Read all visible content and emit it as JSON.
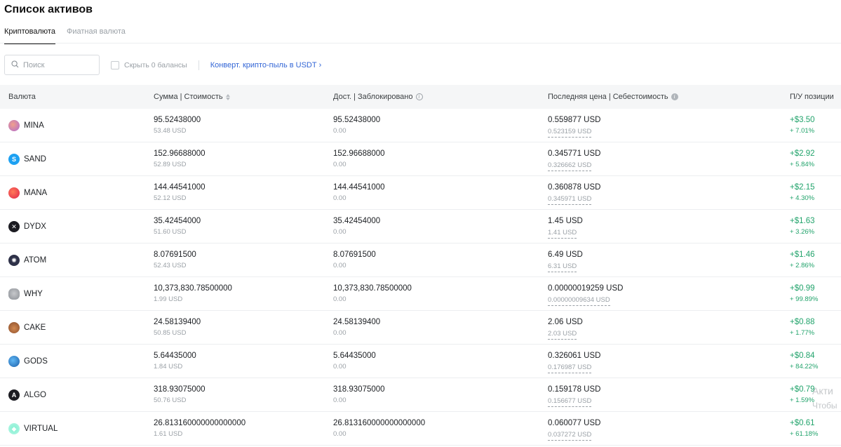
{
  "page": {
    "title": "Список активов"
  },
  "tabs": [
    {
      "label": "Криптовалюта",
      "active": true
    },
    {
      "label": "Фиатная валюта",
      "active": false
    }
  ],
  "toolbar": {
    "search_placeholder": "Поиск",
    "search_value": "",
    "hide_zero_label": "Скрыть 0 балансы",
    "hide_zero_checked": false,
    "convert_link": "Конверт. крипто-пыль в USDT",
    "convert_chevron": "›"
  },
  "table": {
    "headers": {
      "currency": "Валюта",
      "amount": "Сумма | Стоимость",
      "available": "Дост. | Заблокировано",
      "price": "Последняя цена | Себестоимость",
      "pnl": "П/У позиции"
    },
    "rows": [
      {
        "symbol": "MINA",
        "icon": "mina-icon",
        "amount": "95.52438000",
        "value": "53.48 USD",
        "available": "95.52438000",
        "locked": "0.00",
        "last_price": "0.559877 USD",
        "cost": "0.523159 USD",
        "pnl": "+$3.50",
        "pnl_pct": "+ 7.01%"
      },
      {
        "symbol": "SAND",
        "icon": "sand-icon",
        "amount": "152.96688000",
        "value": "52.89 USD",
        "available": "152.96688000",
        "locked": "0.00",
        "last_price": "0.345771 USD",
        "cost": "0.326662 USD",
        "pnl": "+$2.92",
        "pnl_pct": "+ 5.84%"
      },
      {
        "symbol": "MANA",
        "icon": "mana-icon",
        "amount": "144.44541000",
        "value": "52.12 USD",
        "available": "144.44541000",
        "locked": "0.00",
        "last_price": "0.360878 USD",
        "cost": "0.345971 USD",
        "pnl": "+$2.15",
        "pnl_pct": "+ 4.30%"
      },
      {
        "symbol": "DYDX",
        "icon": "dydx-icon",
        "amount": "35.42454000",
        "value": "51.60 USD",
        "available": "35.42454000",
        "locked": "0.00",
        "last_price": "1.45 USD",
        "cost": "1.41 USD",
        "pnl": "+$1.63",
        "pnl_pct": "+ 3.26%"
      },
      {
        "symbol": "ATOM",
        "icon": "atom-icon",
        "amount": "8.07691500",
        "value": "52.43 USD",
        "available": "8.07691500",
        "locked": "0.00",
        "last_price": "6.49 USD",
        "cost": "6.31 USD",
        "pnl": "+$1.46",
        "pnl_pct": "+ 2.86%"
      },
      {
        "symbol": "WHY",
        "icon": "why-icon",
        "amount": "10,373,830.78500000",
        "value": "1.99 USD",
        "available": "10,373,830.78500000",
        "locked": "0.00",
        "last_price": "0.00000019259 USD",
        "cost": "0.00000009634 USD",
        "pnl": "+$0.99",
        "pnl_pct": "+ 99.89%"
      },
      {
        "symbol": "CAKE",
        "icon": "cake-icon",
        "amount": "24.58139400",
        "value": "50.85 USD",
        "available": "24.58139400",
        "locked": "0.00",
        "last_price": "2.06 USD",
        "cost": "2.03 USD",
        "pnl": "+$0.88",
        "pnl_pct": "+ 1.77%"
      },
      {
        "symbol": "GODS",
        "icon": "gods-icon",
        "amount": "5.64435000",
        "value": "1.84 USD",
        "available": "5.64435000",
        "locked": "0.00",
        "last_price": "0.326061 USD",
        "cost": "0.176987 USD",
        "pnl": "+$0.84",
        "pnl_pct": "+ 84.22%"
      },
      {
        "symbol": "ALGO",
        "icon": "algo-icon",
        "amount": "318.93075000",
        "value": "50.76 USD",
        "available": "318.93075000",
        "locked": "0.00",
        "last_price": "0.159178 USD",
        "cost": "0.156677 USD",
        "pnl": "+$0.79",
        "pnl_pct": "+ 1.59%"
      },
      {
        "symbol": "VIRTUAL",
        "icon": "virtual-icon",
        "amount": "26.813160000000000000",
        "value": "1.61 USD",
        "available": "26.813160000000000000",
        "locked": "0.00",
        "last_price": "0.060077 USD",
        "cost": "0.037272 USD",
        "pnl": "+$0.61",
        "pnl_pct": "+ 61.18%"
      }
    ]
  },
  "watermark": {
    "line1": "Акти",
    "line2": "Чтобы"
  },
  "colors": {
    "positive": "#21a36b",
    "link": "#3366d6",
    "header_bg": "#f5f6f7"
  }
}
